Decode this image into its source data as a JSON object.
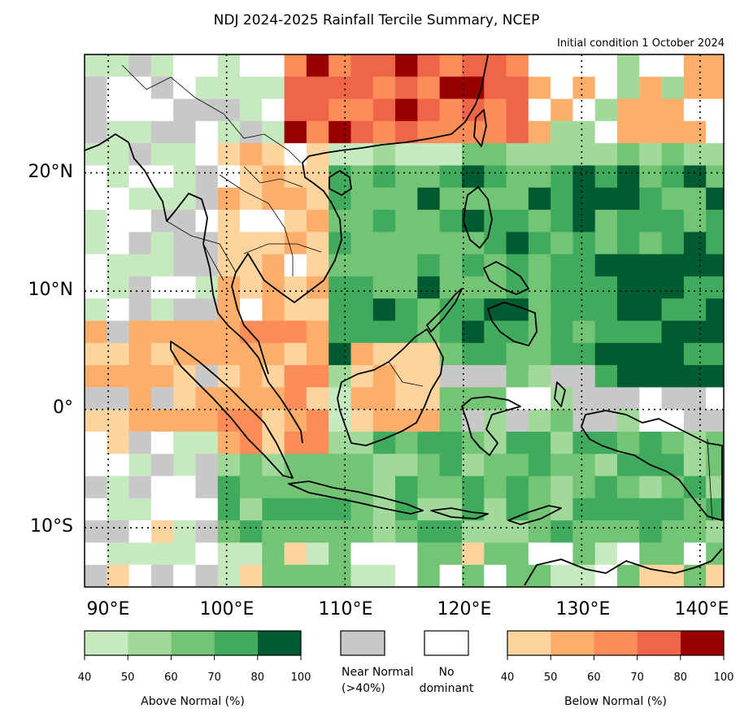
{
  "title": "NDJ 2024-2025 Rainfall Tercile Summary, NCEP",
  "subtitle": "Initial condition 1 October 2024",
  "lat_labels": [
    "20°N",
    "10°N",
    "0°",
    "10°S"
  ],
  "lon_labels": [
    "90°E",
    "100°E",
    "110°E",
    "120°E",
    "130°E",
    "140°E"
  ],
  "legend": {
    "above_normal": {
      "label": "Above Normal (%)",
      "ticks": [
        "40",
        "50",
        "60",
        "70",
        "80",
        "100"
      ],
      "colors": [
        "#c7e9c0",
        "#a1d99b",
        "#74c476",
        "#41ab5d",
        "#005a32"
      ]
    },
    "near_normal": {
      "label": "Near Normal (>40%)",
      "color": "#c8c8c8"
    },
    "no_dominant": {
      "label": "No dominant",
      "color": "#ffffff"
    },
    "below_normal": {
      "label": "Below Normal (%)",
      "ticks": [
        "40",
        "50",
        "60",
        "70",
        "80",
        "100"
      ],
      "colors": [
        "#fdd49e",
        "#fdae6b",
        "#fc8d59",
        "#ef6548",
        "#990000"
      ]
    }
  },
  "map_extent": {
    "lon_min": 88,
    "lon_max": 142,
    "lat_min": -15,
    "lat_max": 30
  }
}
